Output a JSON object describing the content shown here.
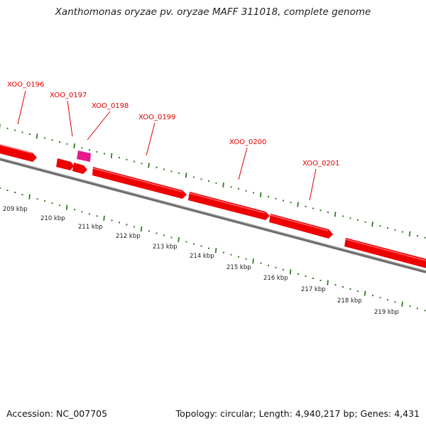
{
  "header": {
    "title": "Xanthomonas oryzae pv. oryzae MAFF 311018, complete genome"
  },
  "footer": {
    "accession": "Accession: NC_007705",
    "topology": "Topology: circular; Length: 4,940,217 bp; Genes: 4,431"
  },
  "genes": [
    {
      "label": "XOO_0196"
    },
    {
      "label": "XOO_0197"
    },
    {
      "label": "XOO_0198"
    },
    {
      "label": "XOO_0199"
    },
    {
      "label": "XOO_0200"
    },
    {
      "label": "XOO_0201"
    }
  ],
  "scale_labels": [
    "209 kbp",
    "210 kbp",
    "211 kbp",
    "212 kbp",
    "213 kbp",
    "214 kbp",
    "215 kbp",
    "216 kbp",
    "217 kbp",
    "218 kbp",
    "219 kbp"
  ],
  "colors": {
    "cds": "#ee0000",
    "cds_highlight": "#ff6666",
    "rna": "#e8198c",
    "tick": "#2e7d1e",
    "backbone": "#808080",
    "label": "#e00000"
  }
}
